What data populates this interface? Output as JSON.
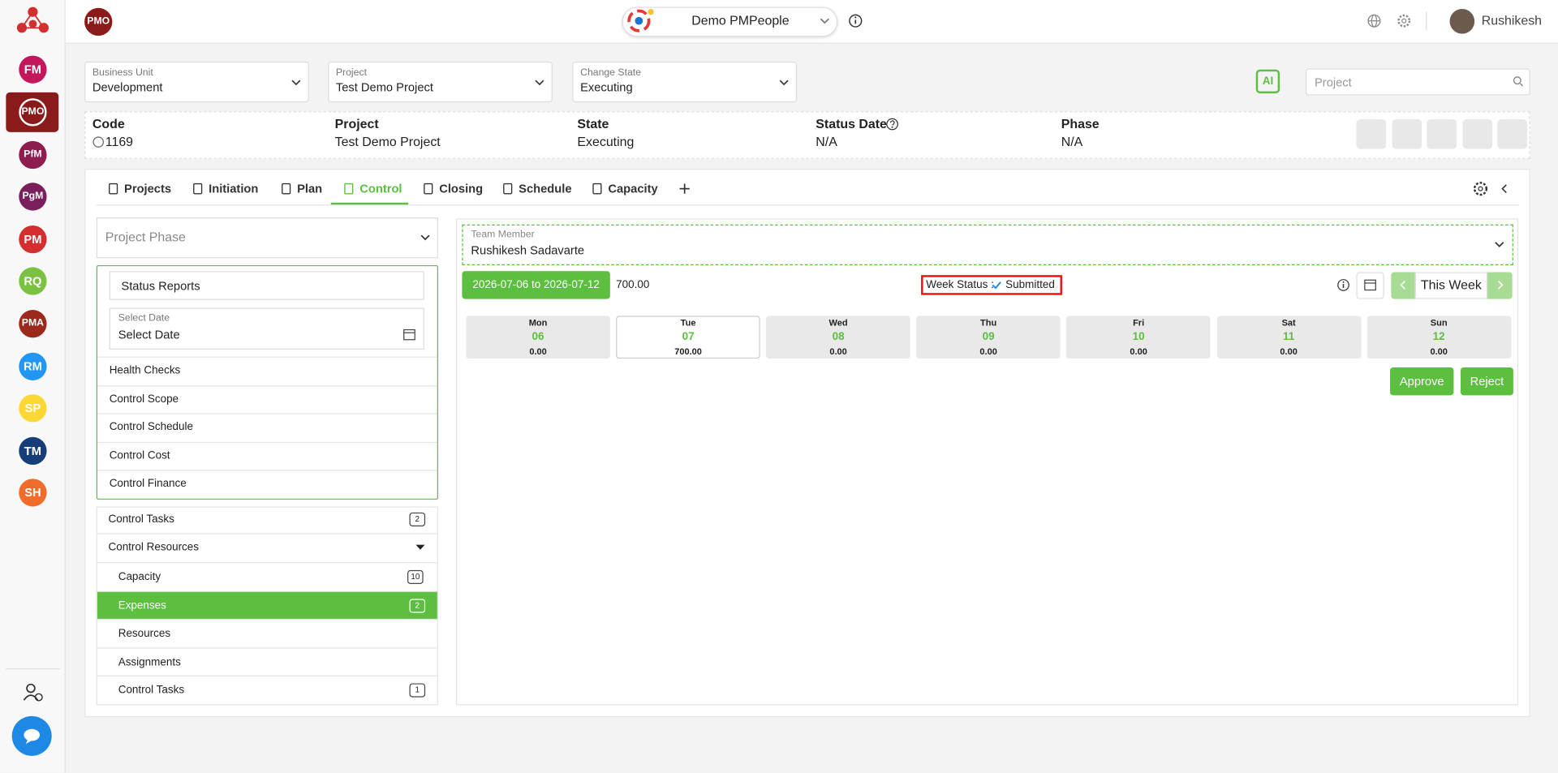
{
  "header": {
    "logo": "PMO",
    "workspace": "Demo PMPeople",
    "user": "Rushikesh"
  },
  "apps": [
    {
      "label": "FM",
      "color": "#c2185b"
    },
    {
      "label": "PMO",
      "color": "#8b1a1a"
    },
    {
      "label": "PfM",
      "color": "#8e1d4f"
    },
    {
      "label": "PgM",
      "color": "#7b1f5c"
    },
    {
      "label": "PM",
      "color": "#d32f2f"
    },
    {
      "label": "RQ",
      "color": "#7cc242"
    },
    {
      "label": "PMA",
      "color": "#9c2a1c"
    },
    {
      "label": "RM",
      "color": "#2196f3"
    },
    {
      "label": "SP",
      "color": "#fdd835"
    },
    {
      "label": "TM",
      "color": "#163d7a"
    },
    {
      "label": "SH",
      "color": "#ef6c2a"
    }
  ],
  "filters": [
    {
      "label": "Business Unit",
      "value": "Development"
    },
    {
      "label": "Project",
      "value": "Test Demo Project"
    },
    {
      "label": "Change State",
      "value": "Executing"
    }
  ],
  "ai": "AI",
  "search": "Project",
  "info": [
    {
      "label": "Code",
      "value": "1169"
    },
    {
      "label": "Project",
      "value": "Test Demo Project"
    },
    {
      "label": "State",
      "value": "Executing"
    },
    {
      "label": "Status Date",
      "value": "N/A"
    },
    {
      "label": "Phase",
      "value": "N/A"
    }
  ],
  "tabs": [
    "Projects",
    "Initiation",
    "Plan",
    "Control",
    "Closing",
    "Schedule",
    "Capacity"
  ],
  "left": {
    "phase": "Project Phase",
    "status_reports": "Status Reports",
    "date_label": "Select Date",
    "date_value": "Select Date",
    "menu": [
      "Health Checks",
      "Control Scope",
      "Control Schedule",
      "Control Cost",
      "Control Finance"
    ],
    "tasks": {
      "label": "Control Tasks",
      "count": 2
    },
    "resources": "Control Resources",
    "sub": [
      {
        "label": "Capacity",
        "count": 10
      },
      {
        "label": "Expenses",
        "count": 2
      },
      {
        "label": "Resources"
      },
      {
        "label": "Assignments"
      },
      {
        "label": "Control Tasks",
        "count": 1
      }
    ]
  },
  "right": {
    "member_label": "Team Member",
    "member": "Rushikesh Sadavarte",
    "range": "2026-07-06 to 2026-07-12",
    "total": "700.00",
    "status_label": "Week Status :",
    "status": "Submitted",
    "this_week": "This Week",
    "days": [
      {
        "day": "Mon",
        "date": "06",
        "hours": "0.00"
      },
      {
        "day": "Tue",
        "date": "07",
        "hours": "700.00"
      },
      {
        "day": "Wed",
        "date": "08",
        "hours": "0.00"
      },
      {
        "day": "Thu",
        "date": "09",
        "hours": "0.00"
      },
      {
        "day": "Fri",
        "date": "10",
        "hours": "0.00"
      },
      {
        "day": "Sat",
        "date": "11",
        "hours": "0.00"
      },
      {
        "day": "Sun",
        "date": "12",
        "hours": "0.00"
      }
    ],
    "approve": "Approve",
    "reject": "Reject"
  }
}
